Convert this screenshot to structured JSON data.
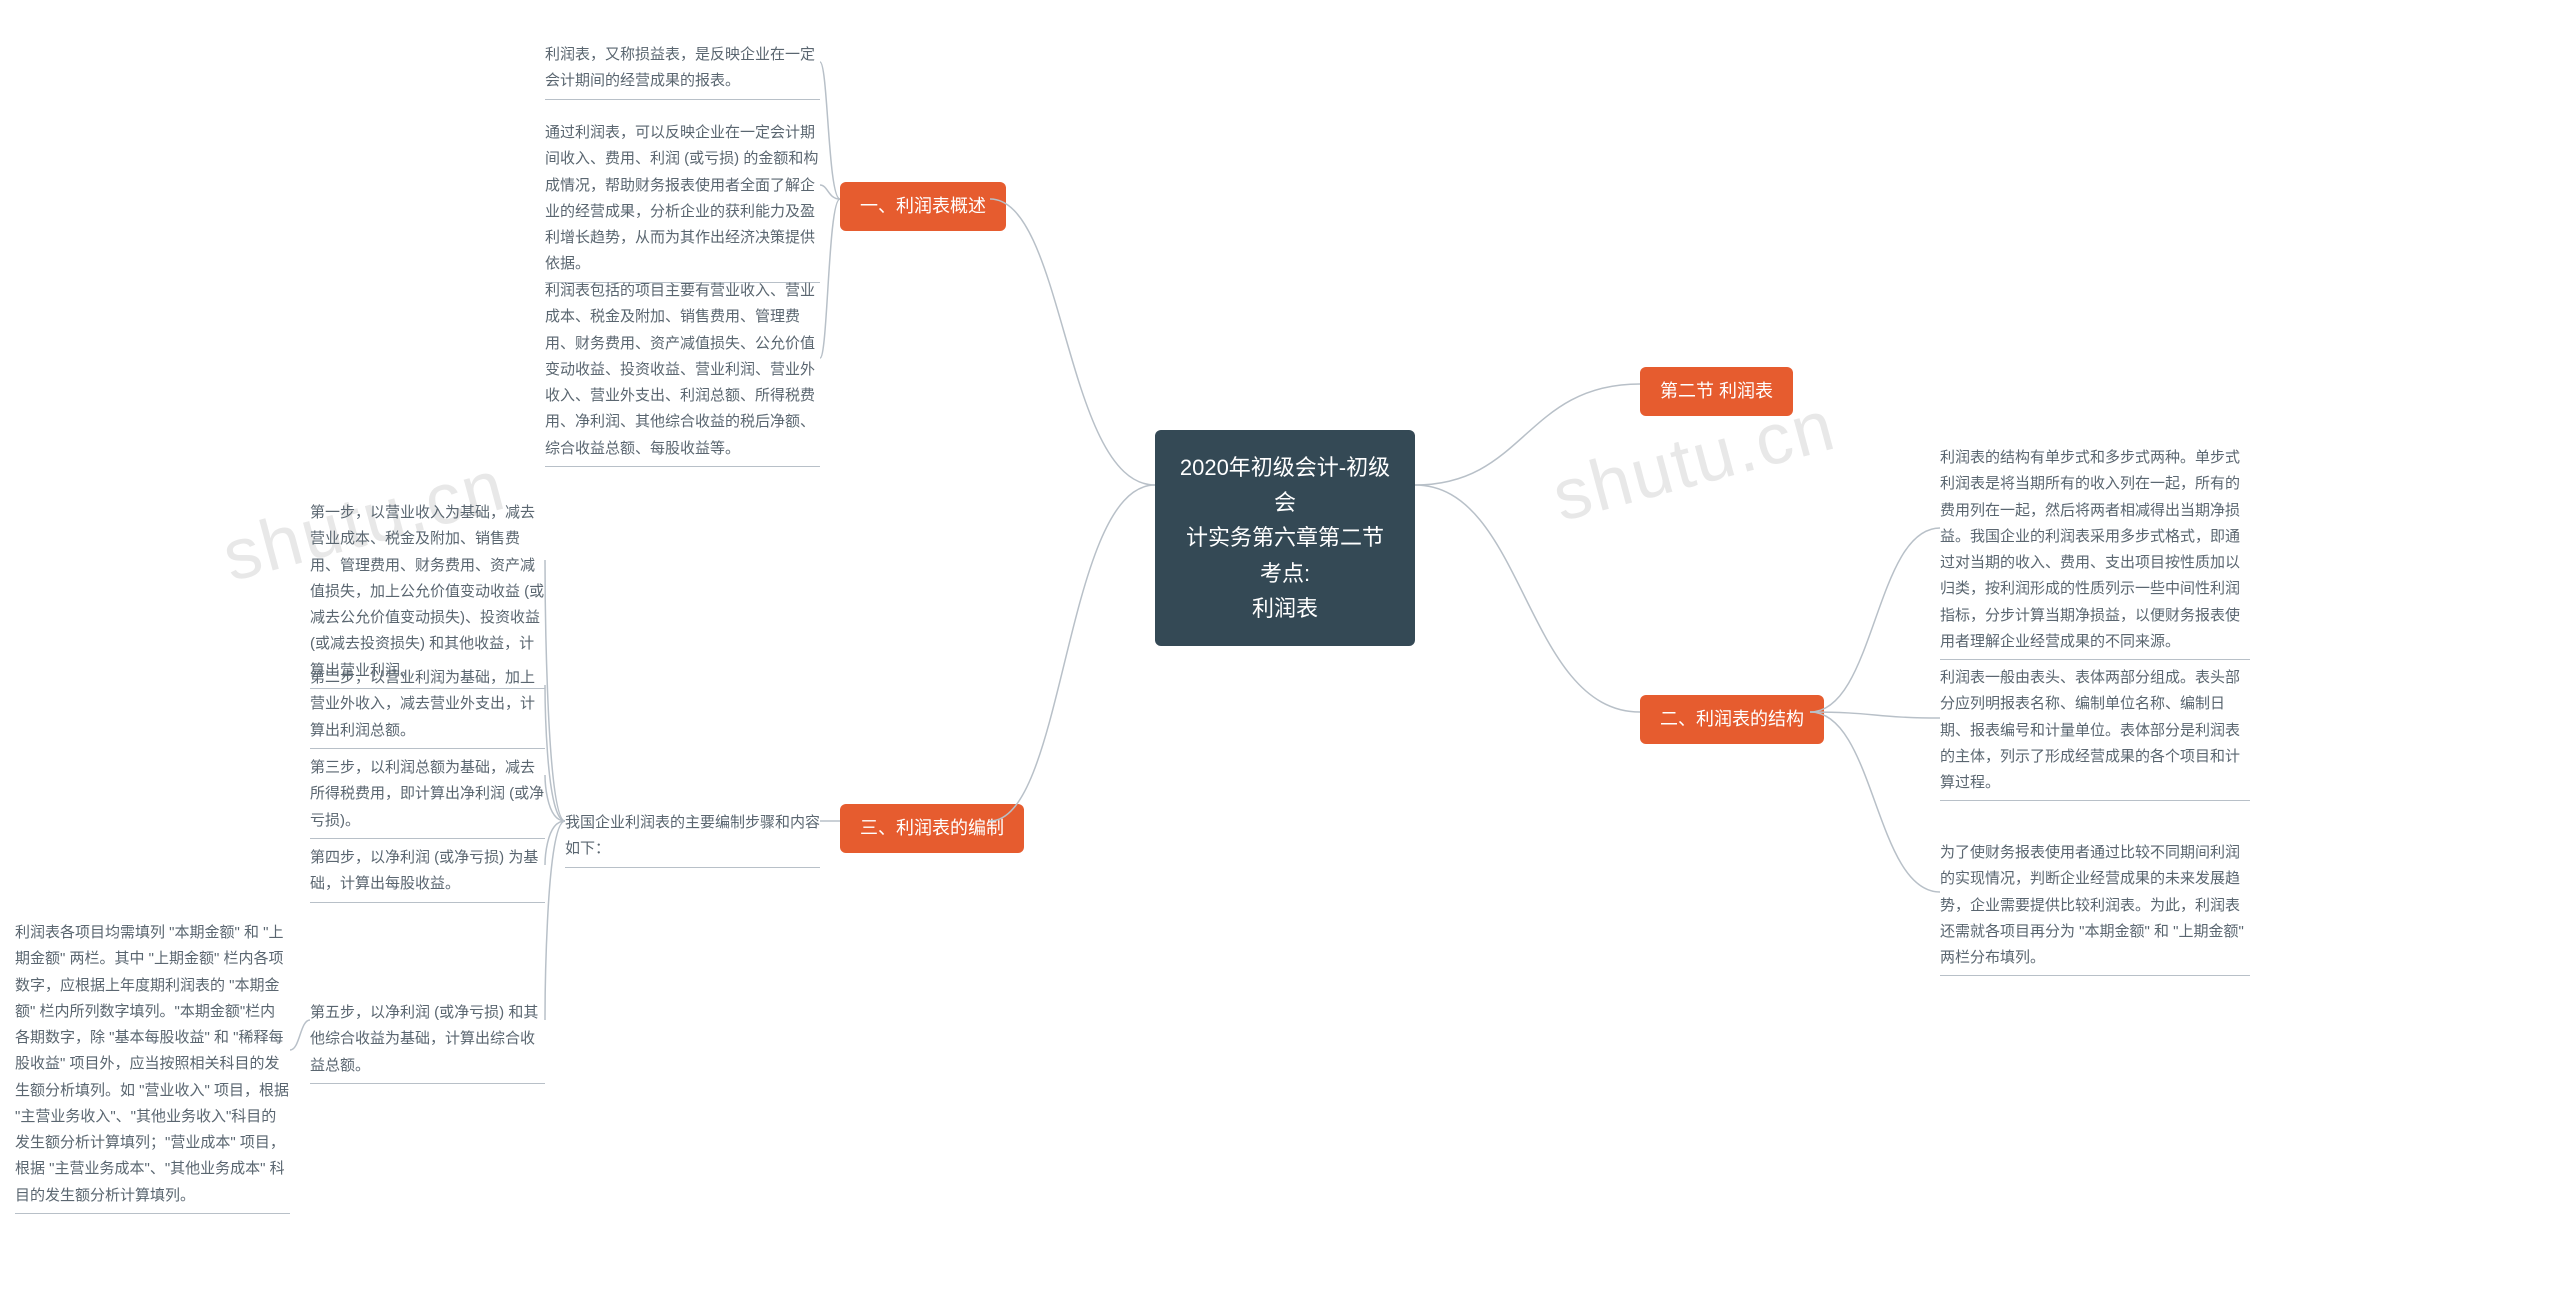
{
  "watermark_text": "shutu.cn",
  "root": {
    "label": "2020年初级会计-初级会\n计实务第六章第二节考点:\n利润表"
  },
  "colors": {
    "root_bg": "#344955",
    "root_text": "#ffffff",
    "section_bg": "#e65c2f",
    "section_text": "#ffffff",
    "leaf_text": "#5a6670",
    "line": "#b8c0c8",
    "background": "#ffffff",
    "watermark": "#e8e8e8"
  },
  "typography": {
    "root_fontsize": 22,
    "section_fontsize": 18,
    "leaf_fontsize": 15
  },
  "right_sections": [
    {
      "label": "第二节 利润表"
    },
    {
      "label": "二、利润表的结构"
    }
  ],
  "left_sections": [
    {
      "label": "一、利润表概述"
    },
    {
      "label": "三、利润表的编制"
    }
  ],
  "right_leaves": {
    "structure": [
      "利润表的结构有单步式和多步式两种。单步式利润表是将当期所有的收入列在一起，所有的费用列在一起，然后将两者相减得出当期净损益。我国企业的利润表采用多步式格式，即通过对当期的收入、费用、支出项目按性质加以归类，按利润形成的性质列示一些中间性利润指标，分步计算当期净损益，以便财务报表使用者理解企业经营成果的不同来源。",
      "利润表一般由表头、表体两部分组成。表头部分应列明报表名称、编制单位名称、编制日期、报表编号和计量单位。表体部分是利润表的主体，列示了形成经营成果的各个项目和计算过程。",
      "为了使财务报表使用者通过比较不同期间利润的实现情况，判断企业经营成果的未来发展趋势，企业需要提供比较利润表。为此，利润表还需就各项目再分为 \"本期金额\" 和 \"上期金额\" 两栏分布填列。"
    ]
  },
  "left_leaves": {
    "overview": [
      "利润表，又称损益表，是反映企业在一定会计期间的经营成果的报表。",
      "通过利润表，可以反映企业在一定会计期间收入、费用、利润 (或亏损) 的金额和构成情况，帮助财务报表使用者全面了解企业的经营成果，分析企业的获利能力及盈利增长趋势，从而为其作出经济决策提供依据。",
      "利润表包括的项目主要有营业收入、营业成本、税金及附加、销售费用、管理费用、财务费用、资产减值损失、公允价值变动收益、投资收益、营业利润、营业外收入、营业外支出、利润总额、所得税费用、净利润、其他综合收益的税后净额、综合收益总额、每股收益等。"
    ],
    "compile_intro": "我国企业利润表的主要编制步骤和内容如下：",
    "compile_steps": [
      "第一步，以营业收入为基础，减去营业成本、税金及附加、销售费用、管理费用、财务费用、资产减值损失，加上公允价值变动收益 (或减去公允价值变动损失)、投资收益(或减去投资损失) 和其他收益，计算出营业利润。",
      "第二步，以营业利润为基础，加上营业外收入，减去营业外支出，计算出利润总额。",
      "第三步，以利润总额为基础，减去所得税费用，即计算出净利润 (或净亏损)。",
      "第四步，以净利润 (或净亏损) 为基础，计算出每股收益。",
      "第五步，以净利润 (或净亏损) 和其他综合收益为基础，计算出综合收益总额。"
    ],
    "compile_note": "利润表各项目均需填列 \"本期金额\" 和 \"上期金额\" 两栏。其中 \"上期金额\" 栏内各项数字，应根据上年度期利润表的 \"本期金额\" 栏内所列数字填列。\"本期金额\"栏内各期数字，除 \"基本每股收益\" 和 \"稀释每股收益\" 项目外，应当按照相关科目的发生额分析填列。如 \"营业收入\" 项目，根据 \"主营业务收入\"、\"其他业务收入\"科目的发生额分析计算填列；\"营业成本\" 项目，根据 \"主营业务成本\"、\"其他业务成本\" 科目的发生额分析计算填列。"
  }
}
